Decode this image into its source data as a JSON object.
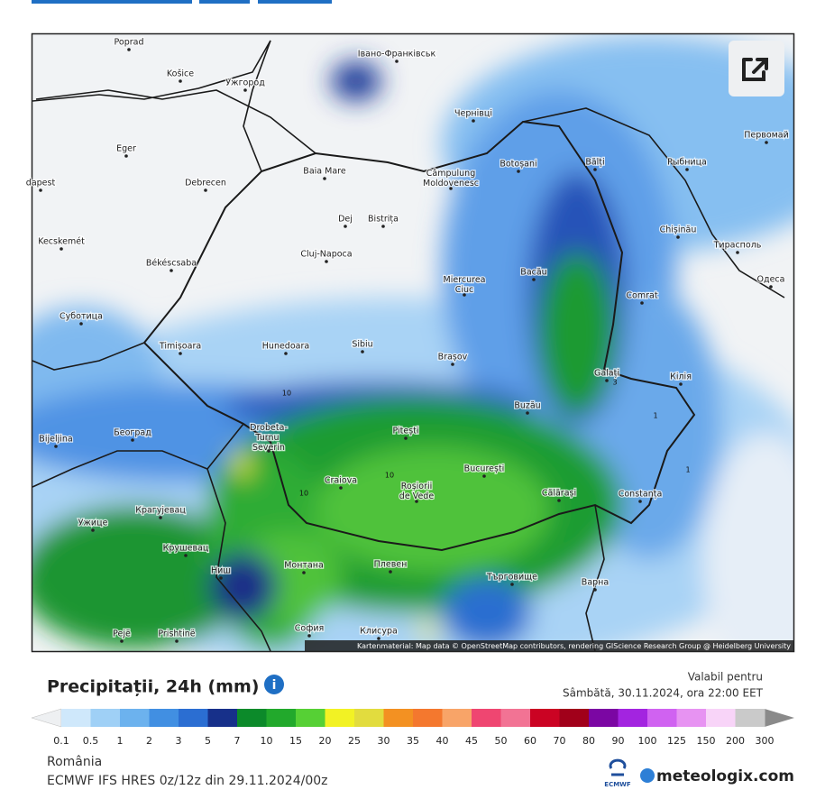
{
  "map": {
    "cities": [
      "Poprad",
      "Košice",
      "Ужгород",
      "Івано-Франківськ",
      "Чернівці",
      "Eger",
      "Baia Mare",
      "Botoșani",
      "Bălți",
      "Рыбница",
      "Первомай",
      "dapest",
      "Debrecen",
      "Câmpulung Moldovenesc",
      "Dej",
      "Bistrița",
      "Chișinău",
      "Тирасполь",
      "Kecskemét",
      "Cluj-Napoca",
      "Békéscsaba",
      "Bacău",
      "Одеса",
      "Miercurea Ciuc",
      "Comrat",
      "Суботица",
      "Timișoara",
      "Hunedoara",
      "Sibiu",
      "Brașov",
      "Galați",
      "Кілія",
      "Buzău",
      "Drobeta-Turnu Severin",
      "Београд",
      "Bijeljina",
      "Pitești",
      "București",
      "Craiova",
      "Roșiorii de Vede",
      "Călărași",
      "Constanța",
      "Крагујевац",
      "Ужице",
      "Крушевац",
      "Ниш",
      "Монтана",
      "Плевен",
      "Търговище",
      "Варна",
      "Pejë",
      "Prishtinë",
      "София",
      "Клисура"
    ],
    "contour_labels": [
      "10",
      "10",
      "3",
      "1",
      "1",
      "10"
    ],
    "attribution": "Kartenmaterial: Map data © OpenStreetMap contributors, rendering GIScience Research Group @ Heidelberg University"
  },
  "legend": {
    "title": "Precipitații, 24h (mm)",
    "valid_label": "Valabil pentru",
    "valid_time": "Sâmbătă, 30.11.2024, ora 22:00 EET",
    "scale": [
      0.1,
      0.5,
      1,
      2,
      3,
      5,
      7,
      10,
      15,
      20,
      25,
      30,
      35,
      40,
      45,
      50,
      60,
      70,
      80,
      90,
      100,
      125,
      150,
      200,
      300
    ],
    "colors": [
      "#cfe8fb",
      "#9fd0f6",
      "#6cb2ee",
      "#418fe2",
      "#2b6ed2",
      "#17308a",
      "#0c8a2a",
      "#22a92c",
      "#56d035",
      "#f2f224",
      "#e2dc3e",
      "#f39122",
      "#f4782e",
      "#f8a468",
      "#ef4671",
      "#f27394",
      "#cb0323",
      "#a1001a",
      "#7b06a3",
      "#a324e0",
      "#d062f1",
      "#e793f2",
      "#f8d4f8",
      "#cacaca"
    ]
  },
  "footer": {
    "region": "România",
    "model": "ECMWF IFS HRES 0z/12z din 29.11.2024/00z",
    "ecmwf": "ECMWF",
    "brand": "meteologix.com"
  }
}
